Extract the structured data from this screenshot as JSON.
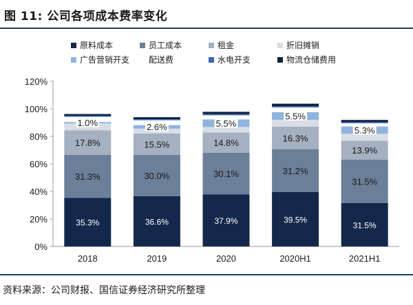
{
  "figure": {
    "title": "图 11:  公司各项成本费率变化",
    "source": "资料来源：公司财报、国信证券经济研究所整理"
  },
  "chart_data": {
    "type": "bar",
    "stacked": true,
    "categories": [
      "2018",
      "2019",
      "2020",
      "2020H1",
      "2021H1"
    ],
    "ylim": [
      0,
      120
    ],
    "yticks": [
      "0%",
      "20%",
      "40%",
      "60%",
      "80%",
      "100%",
      "120%"
    ],
    "grid": false,
    "legend_position": "top",
    "series": [
      {
        "name": "原料成本",
        "color": "#14284b",
        "values": [
          35.3,
          36.6,
          37.9,
          39.5,
          31.5
        ],
        "labels": [
          "35.3%",
          "36.6%",
          "37.9%",
          "39.5%",
          "31.5%"
        ],
        "label_color": "#ffffff"
      },
      {
        "name": "员工成本",
        "color": "#6b7f99",
        "values": [
          31.3,
          30.0,
          30.1,
          31.2,
          31.5
        ],
        "labels": [
          "31.3%",
          "30.0%",
          "30.1%",
          "31.2%",
          "31.5%"
        ],
        "label_color": "#1a1a1a"
      },
      {
        "name": "租金",
        "color": "#a5b0c0",
        "values": [
          17.8,
          15.5,
          14.8,
          16.3,
          13.9
        ],
        "labels": [
          "17.8%",
          "15.5%",
          "14.8%",
          "16.3%",
          "13.9%"
        ],
        "label_color": "#1a1a1a"
      },
      {
        "name": "折旧摊销",
        "color": "#d8dde6",
        "values": [
          5.0,
          3.5,
          4.0,
          5.0,
          5.0
        ],
        "labels": [],
        "label_color": "#1a1a1a"
      },
      {
        "name": "广告营销开支",
        "color": "#8fb4de",
        "values": [
          1.0,
          2.6,
          5.5,
          5.5,
          5.3
        ],
        "labels": [
          "1.0%",
          "2.6%",
          "5.5%",
          "5.5%",
          "5.3%"
        ],
        "label_color": "#1a1a1a",
        "label_boxed": true
      },
      {
        "name": "配送费",
        "color": "#ffffff",
        "values": [
          3.8,
          3.5,
          3.0,
          3.5,
          2.3
        ],
        "labels": [],
        "label_color": "#1a1a1a"
      },
      {
        "name": "水电开支",
        "color": "#3a66b0",
        "values": [
          0.8,
          0.8,
          0.9,
          0.9,
          0.9
        ],
        "labels": [],
        "label_color": "#1a1a1a"
      },
      {
        "name": "物流仓储费用",
        "color": "#0f2140",
        "values": [
          1.2,
          1.4,
          1.6,
          1.8,
          1.5
        ],
        "labels": [],
        "label_color": "#1a1a1a"
      }
    ]
  }
}
